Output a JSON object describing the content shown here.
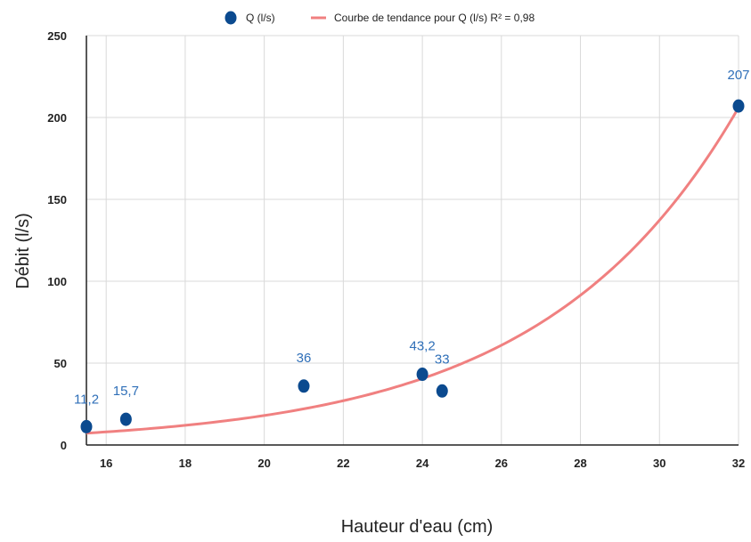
{
  "chart_data": {
    "type": "scatter",
    "title": "",
    "xlabel": "Hauteur d'eau (cm)",
    "ylabel": "Débit (l/s)",
    "xlim": [
      15.5,
      32
    ],
    "ylim": [
      0,
      250
    ],
    "x_ticks": [
      16,
      18,
      20,
      22,
      24,
      26,
      28,
      30,
      32
    ],
    "y_ticks": [
      0,
      50,
      100,
      150,
      200,
      250
    ],
    "grid": true,
    "legend_position": "top-center",
    "series": [
      {
        "name": "Q (l/s)",
        "type": "scatter",
        "color": "#0b4a8f",
        "points": [
          {
            "x": 15.5,
            "y": 11.2,
            "label": "11,2"
          },
          {
            "x": 16.5,
            "y": 15.7,
            "label": "15,7"
          },
          {
            "x": 21,
            "y": 36,
            "label": "36"
          },
          {
            "x": 24,
            "y": 43.2,
            "label": "43,2"
          },
          {
            "x": 24.5,
            "y": 33,
            "label": "33"
          },
          {
            "x": 32,
            "y": 207,
            "label": "207"
          }
        ]
      },
      {
        "name": "Courbe de tendance pour Q (l/s) R² = 0,98",
        "type": "exponential-trendline",
        "color": "#f08080",
        "a": 0.31,
        "b": 0.2031
      }
    ]
  }
}
